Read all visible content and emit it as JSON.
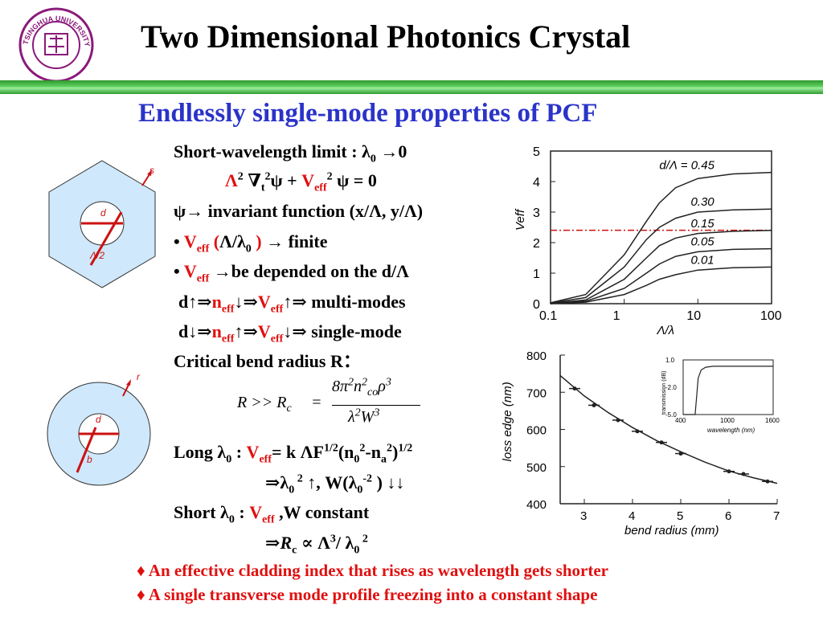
{
  "header": {
    "title": "Two Dimensional Photonics Crystal",
    "logo_text": "TSINGHUA UNIVERSITY 1911"
  },
  "subtitle": "Endlessly single-mode properties of PCF",
  "text": {
    "l1": "Short-wavelength limit : λ",
    "l1_sub": "0",
    "l1_tail": " →0",
    "l2_a": "Λ",
    "l2_b": "2",
    "l2_c": " ∇",
    "l2_d": "t",
    "l2_e": "2",
    "l2_f": "ψ + ",
    "l2_g": "V",
    "l2_h": "eff",
    "l2_i": "2",
    "l2_j": " ψ = 0",
    "l3": "ψ→ invariant function (x/Λ, y/Λ)",
    "l4_a": "• ",
    "l4_b": "V",
    "l4_c": "eff",
    "l4_d": " (",
    "l4_e": "Λ/λ",
    "l4_f": "0",
    "l4_g": " )",
    "l4_h": " → finite",
    "l5_a": "• ",
    "l5_b": "V",
    "l5_c": "eff",
    "l5_d": " →be depended on the d/Λ",
    "l6_a": "d↑⇒",
    "l6_b": "n",
    "l6_c": "eff",
    "l6_d": "↓⇒",
    "l6_e": "V",
    "l6_f": "eff",
    "l6_g": "↑⇒ multi-modes",
    "l7_a": "d↓⇒",
    "l7_b": "n",
    "l7_c": "eff",
    "l7_d": "↑⇒",
    "l7_e": "V",
    "l7_f": "eff",
    "l7_g": "↓⇒ single-mode",
    "l8": "Critical bend radius R：",
    "l9_a": "Long λ",
    "l9_b": "0",
    "l9_c": " : ",
    "l9_d": "V",
    "l9_e": "eff",
    "l9_f": "= k ΛF",
    "l9_g": "1/2",
    "l9_h": "(n",
    "l9_i": "0",
    "l9_j": "2",
    "l9_k": "-n",
    "l9_l": "a",
    "l9_m": "2",
    "l9_n": ")",
    "l9_o": "1/2",
    "l10_a": "⇒λ",
    "l10_b": "0",
    "l10_c": " 2",
    "l10_d": " ↑, W(λ",
    "l10_e": "0",
    "l10_f": "-2",
    "l10_g": " ) ↓↓",
    "l11_a": "Short λ",
    "l11_b": "0",
    "l11_c": " : ",
    "l11_d": "V",
    "l11_e": "eff",
    "l11_f": " ,W constant",
    "l12_a": "⇒",
    "l12_b": "R",
    "l12_c": "c",
    "l12_d": " ∝ Λ",
    "l12_e": "3",
    "l12_f": "/ λ",
    "l12_g": "0",
    "l12_h": " 2"
  },
  "formula": {
    "lhs": "R >> R",
    "lhs_sub": "c",
    "eq": "=",
    "num_a": "8π",
    "num_b": "2",
    "num_c": "n",
    "num_d": "2",
    "num_e": "co",
    "num_f": "ρ",
    "num_g": "3",
    "den_a": "λ",
    "den_b": "2",
    "den_c": "W",
    "den_d": "3"
  },
  "notes": [
    "♦  An effective cladding index that rises as wavelength gets shorter",
    "♦  A single transverse mode profile freezing into a constant shape"
  ],
  "diagram1": {
    "label_s": "s",
    "label_d": "d",
    "label_lambda": "Λ/2"
  },
  "diagram2": {
    "label_r": "r",
    "label_d": "d",
    "label_b": "b"
  },
  "chart_data": [
    {
      "type": "line",
      "xlabel": "Λ/λ",
      "ylabel": "Veff",
      "x_scale": "log",
      "xlim": [
        0.1,
        100
      ],
      "ylim": [
        0,
        5
      ],
      "x_ticks": [
        "0.1",
        "1",
        "10",
        "100"
      ],
      "y_ticks": [
        "0",
        "1",
        "2",
        "3",
        "4",
        "5"
      ],
      "annotations": [
        "d/Λ = 0.45"
      ],
      "reference_line_y": 2.405,
      "series": [
        {
          "name": "d/Λ = 0.45",
          "x": [
            0.1,
            0.3,
            1,
            2,
            3,
            5,
            10,
            30,
            100
          ],
          "y": [
            0.03,
            0.3,
            1.6,
            2.7,
            3.3,
            3.8,
            4.1,
            4.25,
            4.3
          ]
        },
        {
          "name": "0.30",
          "x": [
            0.1,
            0.3,
            1,
            2,
            3,
            5,
            10,
            30,
            100
          ],
          "y": [
            0.02,
            0.2,
            1.2,
            2.1,
            2.5,
            2.8,
            3.0,
            3.07,
            3.1
          ]
        },
        {
          "name": "0.15",
          "x": [
            0.1,
            0.3,
            1,
            2,
            3,
            5,
            10,
            30,
            100
          ],
          "y": [
            0.01,
            0.12,
            0.8,
            1.5,
            1.9,
            2.15,
            2.3,
            2.37,
            2.4
          ]
        },
        {
          "name": "0.05",
          "x": [
            0.1,
            0.3,
            1,
            2,
            3,
            5,
            10,
            30,
            100
          ],
          "y": [
            0.01,
            0.08,
            0.5,
            1.0,
            1.3,
            1.55,
            1.7,
            1.78,
            1.8
          ]
        },
        {
          "name": "0.01",
          "x": [
            0.1,
            0.3,
            1,
            2,
            3,
            5,
            10,
            30,
            100
          ],
          "y": [
            0.0,
            0.05,
            0.3,
            0.6,
            0.8,
            0.95,
            1.1,
            1.18,
            1.2
          ]
        }
      ]
    },
    {
      "type": "scatter",
      "xlabel": "bend radius (mm)",
      "ylabel": "loss edge (nm)",
      "xlim": [
        2.5,
        7
      ],
      "ylim": [
        400,
        800
      ],
      "x_ticks": [
        "3",
        "4",
        "5",
        "6",
        "7"
      ],
      "y_ticks": [
        "400",
        "500",
        "600",
        "700",
        "800"
      ],
      "points": {
        "x": [
          2.8,
          3.2,
          3.7,
          4.1,
          4.6,
          5.0,
          6.0,
          6.3,
          6.8
        ],
        "y": [
          710,
          665,
          625,
          595,
          565,
          535,
          487,
          480,
          460
        ]
      },
      "fit": {
        "x": [
          2.5,
          3.0,
          3.5,
          4.0,
          4.5,
          5.0,
          5.5,
          6.0,
          6.5,
          7.0
        ],
        "y": [
          745,
          690,
          645,
          605,
          570,
          540,
          512,
          488,
          470,
          455
        ]
      }
    },
    {
      "type": "line",
      "xlabel": "wavelength (nm)",
      "ylabel": "transmission (dB)",
      "xlim": [
        400,
        1600
      ],
      "ylim": [
        -5.0,
        1.0
      ],
      "x_ticks": [
        "400",
        "1000",
        "1600"
      ],
      "y_ticks": [
        "1.0",
        "-2.0",
        "-5.0"
      ],
      "series": [
        {
          "name": "",
          "x": [
            400,
            560,
            600,
            640,
            700,
            800,
            1000,
            1200,
            1400,
            1600
          ],
          "y": [
            -5.0,
            -5.0,
            -1.0,
            -0.1,
            0.2,
            0.3,
            0.3,
            0.3,
            0.3,
            0.3
          ]
        }
      ]
    }
  ]
}
